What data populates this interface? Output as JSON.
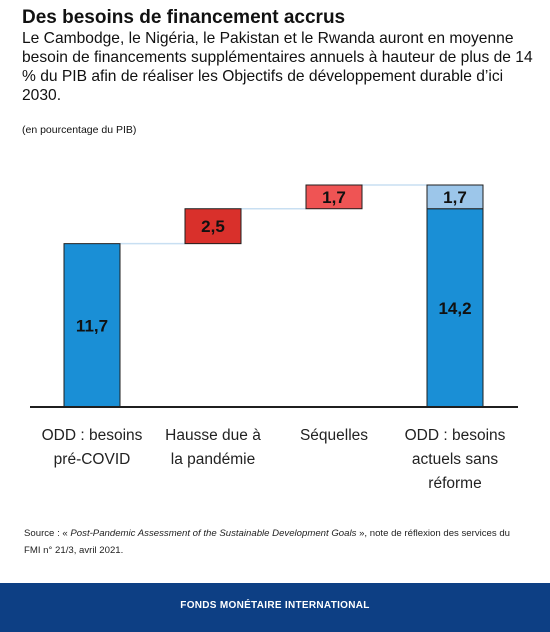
{
  "header": {
    "title": "Des besoins de financement accrus",
    "subtitle": "Le Cambodge, le Nigéria, le Pakistan et le Rwanda auront en moyenne besoin de financements supplémentaires annuels à hauteur de plus de 14 % du PIB afin de réaliser les Objectifs de développement durable d’ici 2030.",
    "unit_note": "(en pourcentage du PIB)"
  },
  "chart_data": {
    "type": "bar",
    "subtype": "waterfall",
    "categories": [
      [
        "ODD : besoins",
        "pré-COVID"
      ],
      [
        "Hausse due à",
        "la pandémie"
      ],
      [
        "Séquelles"
      ],
      [
        "ODD : besoins",
        "actuels sans",
        "réforme"
      ]
    ],
    "bars": [
      {
        "base": 0,
        "value": 11.7,
        "label": "11,7",
        "color": "#1a8fd6"
      },
      {
        "base": 11.7,
        "value": 2.5,
        "label": "2,5",
        "color": "#d9302b"
      },
      {
        "base": 14.2,
        "value": 1.7,
        "label": "1,7",
        "color": "#ef5454"
      },
      {
        "base": 0,
        "value": 14.2,
        "label": "14,2",
        "color": "#1a8fd6"
      },
      {
        "base": 14.2,
        "value": 1.7,
        "label": "1,7",
        "color": "#9cc6ea"
      }
    ],
    "ylim": [
      0,
      15.9
    ],
    "grid": false,
    "connector_color": "#c8dff2"
  },
  "source": {
    "prefix": "Source : « ",
    "italic": "Post-Pandemic Assessment of the Sustainable Development Goals",
    "suffix": " », note de réflexion des services du FMI n° 21/3, avril 2021."
  },
  "footer": {
    "text": "FONDS MONÉTAIRE INTERNATIONAL"
  }
}
